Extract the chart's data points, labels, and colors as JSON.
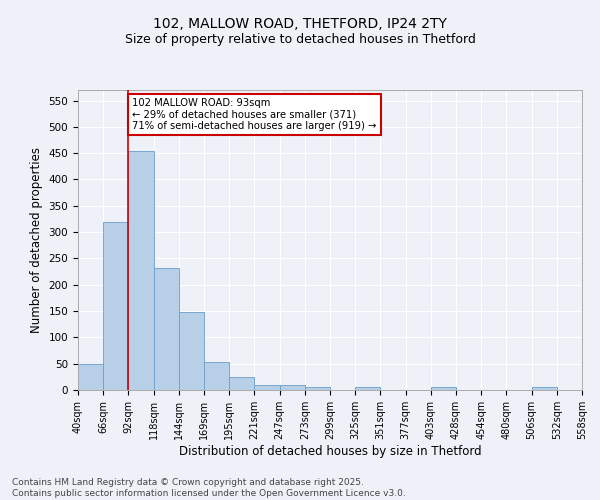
{
  "title_line1": "102, MALLOW ROAD, THETFORD, IP24 2TY",
  "title_line2": "Size of property relative to detached houses in Thetford",
  "xlabel": "Distribution of detached houses by size in Thetford",
  "ylabel": "Number of detached properties",
  "bar_values": [
    50,
    320,
    455,
    232,
    149,
    54,
    25,
    10,
    10,
    5,
    0,
    5,
    0,
    0,
    5,
    0,
    0,
    0,
    5,
    0
  ],
  "bin_labels": [
    "40sqm",
    "66sqm",
    "92sqm",
    "118sqm",
    "144sqm",
    "169sqm",
    "195sqm",
    "221sqm",
    "247sqm",
    "273sqm",
    "299sqm",
    "325sqm",
    "351sqm",
    "377sqm",
    "403sqm",
    "428sqm",
    "454sqm",
    "480sqm",
    "506sqm",
    "532sqm",
    "558sqm"
  ],
  "bar_color": "#b8cfe8",
  "bar_edge_color": "#6a9fc8",
  "background_color": "#eef2f8",
  "grid_color": "#ffffff",
  "annotation_text": "102 MALLOW ROAD: 93sqm\n← 29% of detached houses are smaller (371)\n71% of semi-detached houses are larger (919) →",
  "annotation_box_color": "#ffffff",
  "annotation_box_edge_color": "#cc0000",
  "vline_x": 2,
  "vline_color": "#cc0000",
  "ylim": [
    0,
    570
  ],
  "yticks": [
    0,
    50,
    100,
    150,
    200,
    250,
    300,
    350,
    400,
    450,
    500,
    550
  ],
  "footnote": "Contains HM Land Registry data © Crown copyright and database right 2025.\nContains public sector information licensed under the Open Government Licence v3.0.",
  "footnote_fontsize": 6.5,
  "title1_fontsize": 10,
  "title2_fontsize": 9
}
